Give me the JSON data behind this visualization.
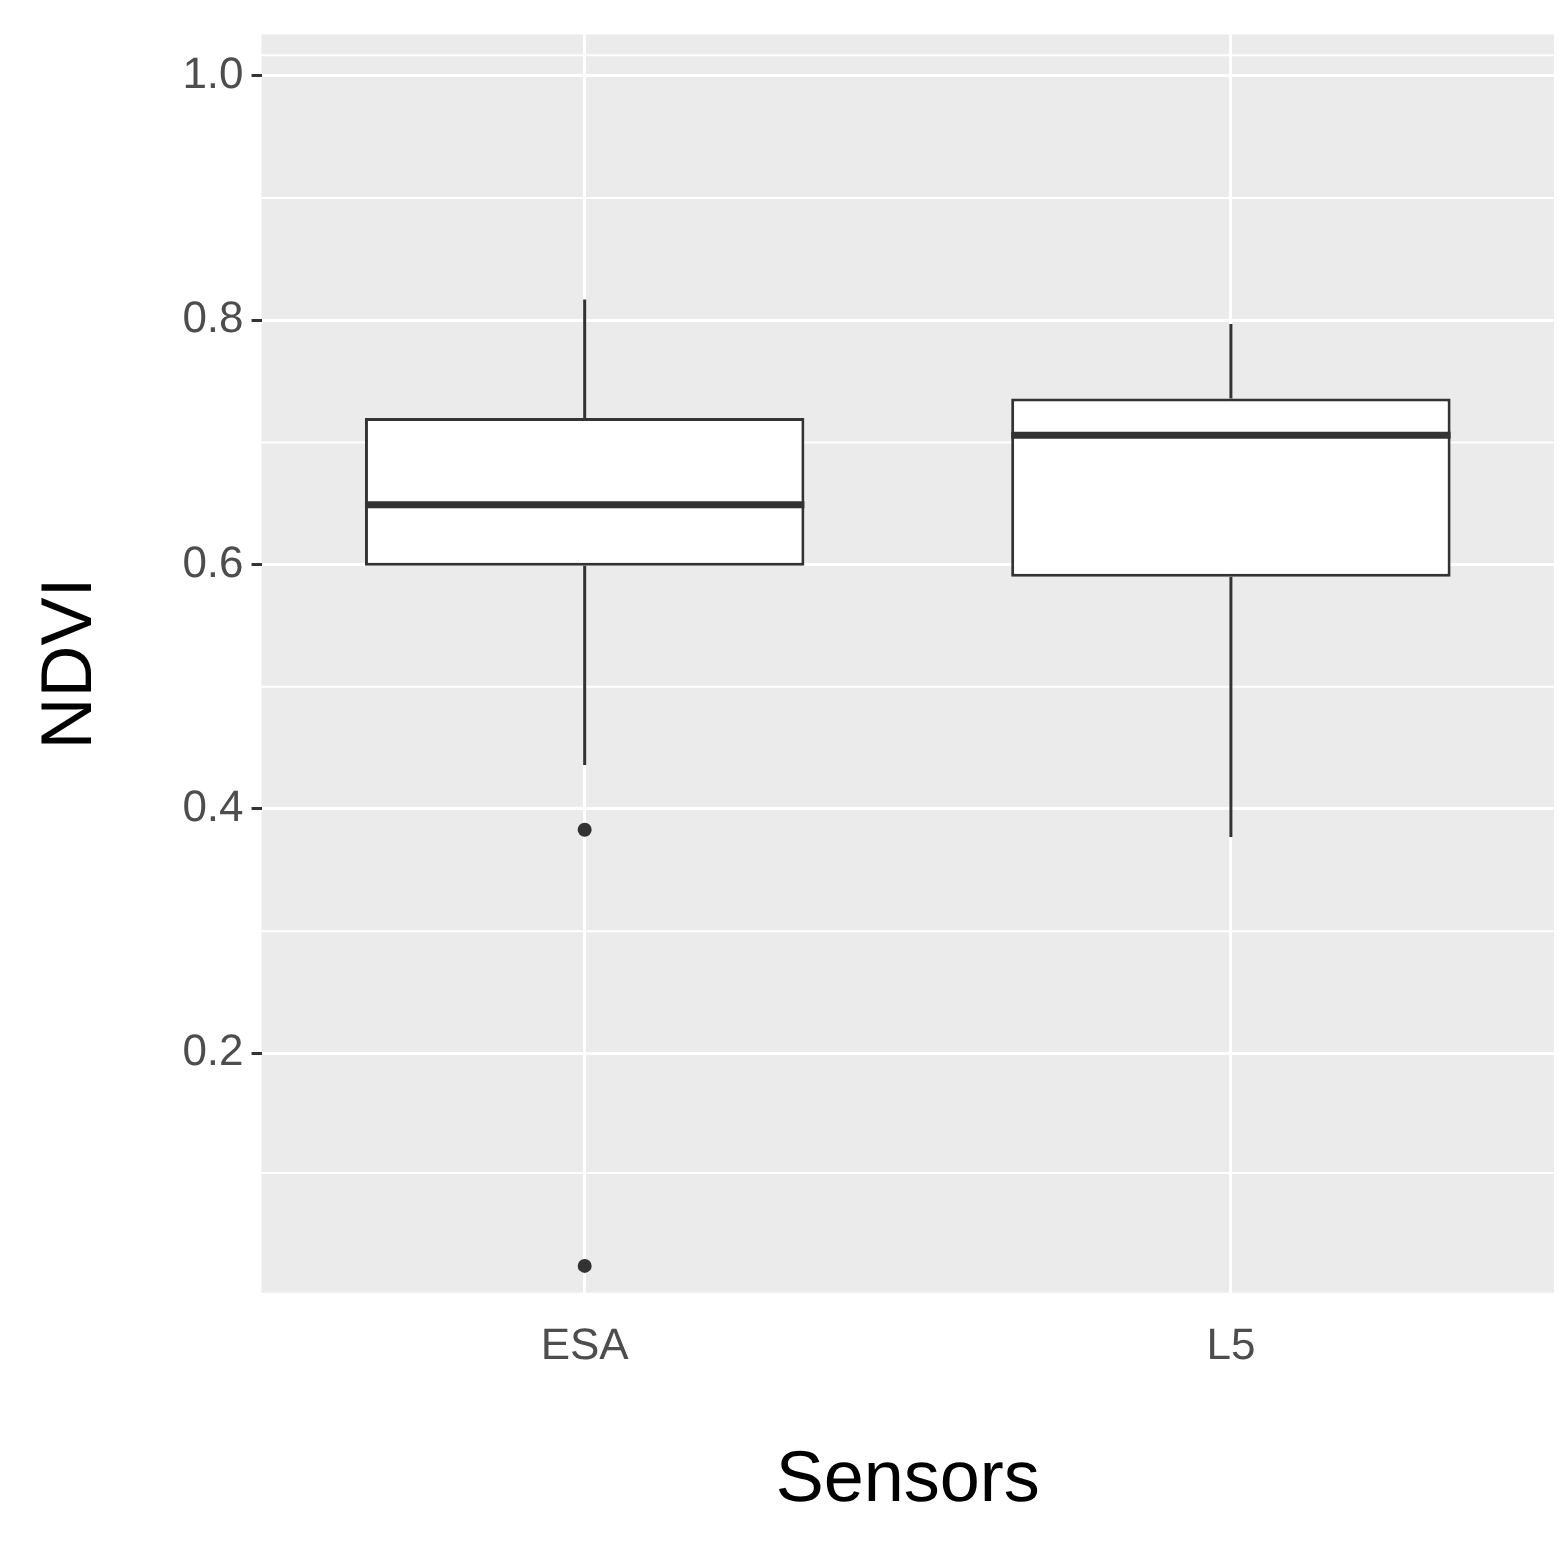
{
  "chart_data": {
    "type": "box",
    "xlabel": "Sensors",
    "ylabel": "NDVI",
    "categories": [
      "ESA",
      "L5"
    ],
    "boxes": [
      {
        "low": 0.436,
        "q1": 0.599,
        "median": 0.649,
        "q3": 0.72,
        "high": 0.817,
        "outliers": [
          0.383,
          0.026
        ]
      },
      {
        "low": 0.377,
        "q1": 0.59,
        "median": 0.706,
        "q3": 0.736,
        "high": 0.797
      }
    ],
    "ylim": [
      0.004,
      1.034
    ],
    "yticks": [
      0.2,
      0.4,
      0.6,
      0.8,
      {
        "value": 1,
        "label": "1.0"
      }
    ],
    "grid": true,
    "legend": false
  }
}
